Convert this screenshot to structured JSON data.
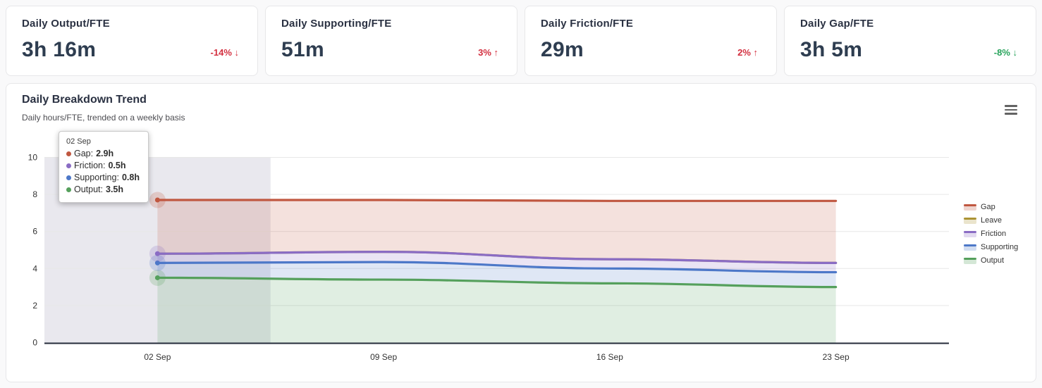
{
  "kpi_cards": [
    {
      "title": "Daily Output/FTE",
      "value": "3h 16m",
      "change": "-14% ↓",
      "change_color": "#d32f3f"
    },
    {
      "title": "Daily Supporting/FTE",
      "value": "51m",
      "change": "3% ↑",
      "change_color": "#d32f3f"
    },
    {
      "title": "Daily Friction/FTE",
      "value": "29m",
      "change": "2% ↑",
      "change_color": "#d32f3f"
    },
    {
      "title": "Daily Gap/FTE",
      "value": "3h 5m",
      "change": "-8% ↓",
      "change_color": "#27a35b"
    }
  ],
  "chart_data": {
    "type": "area",
    "stacked": true,
    "title": "Daily Breakdown Trend",
    "subtitle": "Daily hours/FTE, trended on a weekly basis",
    "categories": [
      "02 Sep",
      "09 Sep",
      "16 Sep",
      "23 Sep"
    ],
    "xlabel": "",
    "ylabel": "",
    "ylim": [
      0,
      10
    ],
    "ytick_step": 2,
    "grid": true,
    "legend_position": "right",
    "legend_order": [
      "Gap",
      "Leave",
      "Friction",
      "Supporting",
      "Output"
    ],
    "series": [
      {
        "name": "Output",
        "color": "#55a05c",
        "values": [
          3.5,
          3.4,
          3.2,
          3.0
        ]
      },
      {
        "name": "Supporting",
        "color": "#4d78c8",
        "values": [
          0.8,
          0.95,
          0.8,
          0.8
        ]
      },
      {
        "name": "Friction",
        "color": "#8a6cc4",
        "values": [
          0.5,
          0.55,
          0.5,
          0.5
        ]
      },
      {
        "name": "Leave",
        "color": "#ac9434",
        "values": [
          0,
          0,
          0,
          0
        ]
      },
      {
        "name": "Gap",
        "color": "#c05740",
        "values": [
          2.9,
          2.8,
          3.15,
          3.35
        ]
      }
    ],
    "hover": {
      "category": "02 Sep",
      "category_index": 0,
      "band_color": "#cfcbda",
      "tooltip_rows": [
        {
          "label": "Gap:",
          "value": "2.9h",
          "color": "#c05740"
        },
        {
          "label": "Friction:",
          "value": "0.5h",
          "color": "#8a6cc4"
        },
        {
          "label": "Supporting:",
          "value": "0.8h",
          "color": "#4d78c8"
        },
        {
          "label": "Output:",
          "value": "3.5h",
          "color": "#55a05c"
        }
      ]
    }
  }
}
